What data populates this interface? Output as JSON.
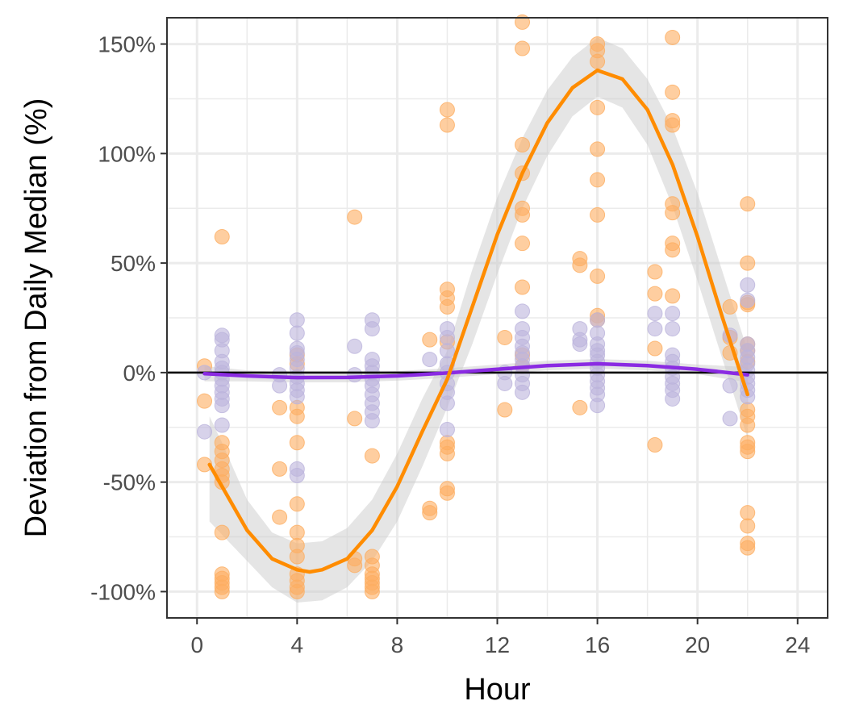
{
  "chart_data": {
    "type": "scatter",
    "title": "",
    "xlabel": "Hour",
    "ylabel": "Deviation from Daily Median (%)",
    "xlim": [
      -1.2,
      25.2
    ],
    "ylim": [
      -112,
      162
    ],
    "x_ticks": [
      0,
      4,
      8,
      12,
      16,
      20,
      24
    ],
    "x_tick_labels": [
      "0",
      "4",
      "8",
      "12",
      "16",
      "20",
      "24"
    ],
    "y_ticks": [
      -100,
      -50,
      0,
      50,
      100,
      150
    ],
    "y_tick_labels": [
      "-100%",
      "-50%",
      "0%",
      "50%",
      "100%",
      "150%"
    ],
    "grid": true,
    "reference_line_y": 0,
    "colors": {
      "orange_points": "#fdae61",
      "orange_line": "#ff8c00",
      "purple_points": "#bcb4dc",
      "purple_line": "#8a2be2",
      "ribbon": "#cccccc",
      "panel_border": "#333333",
      "grid": "#ebebeb"
    },
    "series": [
      {
        "color": "orange",
        "points": [
          [
            0.3,
            3
          ],
          [
            0.3,
            -13
          ],
          [
            0.3,
            -42
          ],
          [
            1.0,
            62
          ],
          [
            1.0,
            -32
          ],
          [
            1.0,
            -36
          ],
          [
            1.0,
            -40
          ],
          [
            1.0,
            -44
          ],
          [
            1.0,
            -47
          ],
          [
            1.0,
            -50
          ],
          [
            1.0,
            -73
          ],
          [
            1.0,
            -92
          ],
          [
            1.0,
            -94
          ],
          [
            1.0,
            -96
          ],
          [
            1.0,
            -98
          ],
          [
            1.0,
            -100
          ],
          [
            3.3,
            -16
          ],
          [
            3.3,
            -44
          ],
          [
            3.3,
            -66
          ],
          [
            4.0,
            8
          ],
          [
            4.0,
            4
          ],
          [
            4.0,
            -16
          ],
          [
            4.0,
            -20
          ],
          [
            4.0,
            -32
          ],
          [
            4.0,
            -60
          ],
          [
            4.0,
            -73
          ],
          [
            4.0,
            -79
          ],
          [
            4.0,
            -84
          ],
          [
            4.0,
            -92
          ],
          [
            4.0,
            -95
          ],
          [
            4.0,
            -98
          ],
          [
            4.0,
            -100
          ],
          [
            6.3,
            71
          ],
          [
            6.3,
            -21
          ],
          [
            6.3,
            -85
          ],
          [
            6.3,
            -88
          ],
          [
            7.0,
            -38
          ],
          [
            7.0,
            -84
          ],
          [
            7.0,
            -88
          ],
          [
            7.0,
            -92
          ],
          [
            7.0,
            -94
          ],
          [
            7.0,
            -96
          ],
          [
            7.0,
            -98
          ],
          [
            7.0,
            -100
          ],
          [
            9.3,
            15
          ],
          [
            9.3,
            -62
          ],
          [
            9.3,
            -64
          ],
          [
            10.0,
            120
          ],
          [
            10.0,
            113
          ],
          [
            10.0,
            38
          ],
          [
            10.0,
            34
          ],
          [
            10.0,
            30
          ],
          [
            10.0,
            14
          ],
          [
            10.0,
            -32
          ],
          [
            10.0,
            -34
          ],
          [
            10.0,
            -37
          ],
          [
            10.0,
            -53
          ],
          [
            10.0,
            -55
          ],
          [
            12.3,
            16
          ],
          [
            12.3,
            -17
          ],
          [
            13.0,
            160
          ],
          [
            13.0,
            148
          ],
          [
            13.0,
            104
          ],
          [
            13.0,
            91
          ],
          [
            13.0,
            75
          ],
          [
            13.0,
            72
          ],
          [
            13.0,
            59
          ],
          [
            13.0,
            39
          ],
          [
            13.0,
            8
          ],
          [
            13.0,
            3
          ],
          [
            15.3,
            52
          ],
          [
            15.3,
            49
          ],
          [
            15.3,
            -16
          ],
          [
            16.0,
            150
          ],
          [
            16.0,
            147
          ],
          [
            16.0,
            142
          ],
          [
            16.0,
            121
          ],
          [
            16.0,
            102
          ],
          [
            16.0,
            88
          ],
          [
            16.0,
            72
          ],
          [
            16.0,
            44
          ],
          [
            16.0,
            26
          ],
          [
            16.0,
            24
          ],
          [
            18.3,
            46
          ],
          [
            18.3,
            36
          ],
          [
            18.3,
            11
          ],
          [
            18.3,
            -33
          ],
          [
            19.0,
            153
          ],
          [
            19.0,
            128
          ],
          [
            19.0,
            115
          ],
          [
            19.0,
            113
          ],
          [
            19.0,
            77
          ],
          [
            19.0,
            73
          ],
          [
            19.0,
            59
          ],
          [
            19.0,
            56
          ],
          [
            19.0,
            35
          ],
          [
            21.3,
            30
          ],
          [
            21.3,
            16
          ],
          [
            21.3,
            9
          ],
          [
            22.0,
            77
          ],
          [
            22.0,
            50
          ],
          [
            22.0,
            32
          ],
          [
            22.0,
            31
          ],
          [
            22.0,
            13
          ],
          [
            22.0,
            10
          ],
          [
            22.0,
            5
          ],
          [
            22.0,
            -17
          ],
          [
            22.0,
            -20
          ],
          [
            22.0,
            -24
          ],
          [
            22.0,
            -32
          ],
          [
            22.0,
            -34
          ],
          [
            22.0,
            -36
          ],
          [
            22.0,
            -64
          ],
          [
            22.0,
            -70
          ],
          [
            22.0,
            -78
          ],
          [
            22.0,
            -80
          ]
        ],
        "smooth": [
          [
            0.5,
            -42
          ],
          [
            1.0,
            -52
          ],
          [
            2.0,
            -72
          ],
          [
            3.0,
            -85
          ],
          [
            4.0,
            -90
          ],
          [
            4.5,
            -91
          ],
          [
            5.0,
            -90
          ],
          [
            6.0,
            -85
          ],
          [
            7.0,
            -72
          ],
          [
            8.0,
            -52
          ],
          [
            9.0,
            -27
          ],
          [
            10.0,
            -3
          ],
          [
            11.0,
            30
          ],
          [
            12.0,
            63
          ],
          [
            13.0,
            91
          ],
          [
            14.0,
            114
          ],
          [
            15.0,
            130
          ],
          [
            16.0,
            138
          ],
          [
            17.0,
            134
          ],
          [
            18.0,
            120
          ],
          [
            19.0,
            95
          ],
          [
            20.0,
            62
          ],
          [
            21.0,
            25
          ],
          [
            22.0,
            -10
          ]
        ],
        "band": [
          [
            0.5,
            -68,
            -20
          ],
          [
            1.0,
            -74,
            -32
          ],
          [
            2.0,
            -86,
            -58
          ],
          [
            3.0,
            -98,
            -73
          ],
          [
            4.0,
            -105,
            -78
          ],
          [
            5.0,
            -104,
            -77
          ],
          [
            6.0,
            -98,
            -71
          ],
          [
            7.0,
            -86,
            -58
          ],
          [
            8.0,
            -68,
            -37
          ],
          [
            9.0,
            -43,
            -12
          ],
          [
            10.0,
            -16,
            10
          ],
          [
            11.0,
            13,
            47
          ],
          [
            12.0,
            45,
            80
          ],
          [
            13.0,
            75,
            107
          ],
          [
            14.0,
            99,
            129
          ],
          [
            15.0,
            117,
            144
          ],
          [
            16.0,
            126,
            153
          ],
          [
            17.0,
            121,
            148
          ],
          [
            18.0,
            104,
            134
          ],
          [
            19.0,
            76,
            112
          ],
          [
            20.0,
            42,
            82
          ],
          [
            21.0,
            6,
            46
          ],
          [
            22.0,
            -30,
            10
          ]
        ]
      },
      {
        "color": "purple",
        "points": [
          [
            0.3,
            -27
          ],
          [
            0.3,
            0
          ],
          [
            1.0,
            17
          ],
          [
            1.0,
            15
          ],
          [
            1.0,
            10
          ],
          [
            1.0,
            5
          ],
          [
            1.0,
            2
          ],
          [
            1.0,
            0
          ],
          [
            1.0,
            -3
          ],
          [
            1.0,
            -6
          ],
          [
            1.0,
            -9
          ],
          [
            1.0,
            -12
          ],
          [
            1.0,
            -15
          ],
          [
            1.0,
            -24
          ],
          [
            3.3,
            -1
          ],
          [
            3.3,
            -6
          ],
          [
            4.0,
            24
          ],
          [
            4.0,
            18
          ],
          [
            4.0,
            11
          ],
          [
            4.0,
            9
          ],
          [
            4.0,
            6
          ],
          [
            4.0,
            2
          ],
          [
            4.0,
            -2
          ],
          [
            4.0,
            -5
          ],
          [
            4.0,
            -8
          ],
          [
            4.0,
            -11
          ],
          [
            4.0,
            -44
          ],
          [
            4.0,
            -47
          ],
          [
            6.3,
            12
          ],
          [
            6.3,
            -1
          ],
          [
            7.0,
            24
          ],
          [
            7.0,
            20
          ],
          [
            7.0,
            6
          ],
          [
            7.0,
            3
          ],
          [
            7.0,
            0
          ],
          [
            7.0,
            -3
          ],
          [
            7.0,
            -6
          ],
          [
            7.0,
            -10
          ],
          [
            7.0,
            -14
          ],
          [
            7.0,
            -18
          ],
          [
            7.0,
            -22
          ],
          [
            9.3,
            6
          ],
          [
            10.0,
            20
          ],
          [
            10.0,
            16
          ],
          [
            10.0,
            10
          ],
          [
            10.0,
            4
          ],
          [
            10.0,
            0
          ],
          [
            10.0,
            -5
          ],
          [
            10.0,
            -9
          ],
          [
            10.0,
            -14
          ],
          [
            10.0,
            -26
          ],
          [
            12.3,
            0
          ],
          [
            12.3,
            -5
          ],
          [
            13.0,
            28
          ],
          [
            13.0,
            20
          ],
          [
            13.0,
            16
          ],
          [
            13.0,
            12
          ],
          [
            13.0,
            9
          ],
          [
            13.0,
            6
          ],
          [
            13.0,
            3
          ],
          [
            13.0,
            -1
          ],
          [
            13.0,
            -5
          ],
          [
            13.0,
            -9
          ],
          [
            15.3,
            20
          ],
          [
            15.3,
            15
          ],
          [
            15.3,
            13
          ],
          [
            16.0,
            24
          ],
          [
            16.0,
            18
          ],
          [
            16.0,
            13
          ],
          [
            16.0,
            10
          ],
          [
            16.0,
            8
          ],
          [
            16.0,
            5
          ],
          [
            16.0,
            2
          ],
          [
            16.0,
            -1
          ],
          [
            16.0,
            -4
          ],
          [
            16.0,
            -7
          ],
          [
            16.0,
            -10
          ],
          [
            16.0,
            -15
          ],
          [
            18.3,
            27
          ],
          [
            18.3,
            20
          ],
          [
            19.0,
            27
          ],
          [
            19.0,
            20
          ],
          [
            19.0,
            8
          ],
          [
            19.0,
            5
          ],
          [
            19.0,
            2
          ],
          [
            19.0,
            -2
          ],
          [
            19.0,
            -5
          ],
          [
            19.0,
            -8
          ],
          [
            19.0,
            -12
          ],
          [
            21.3,
            17
          ],
          [
            21.3,
            -6
          ],
          [
            21.3,
            -21
          ],
          [
            22.0,
            40
          ],
          [
            22.0,
            33
          ],
          [
            22.0,
            13
          ],
          [
            22.0,
            10
          ],
          [
            22.0,
            7
          ],
          [
            22.0,
            4
          ],
          [
            22.0,
            1
          ],
          [
            22.0,
            -2
          ],
          [
            22.0,
            -5
          ],
          [
            22.0,
            -8
          ],
          [
            22.0,
            -11
          ]
        ],
        "smooth": [
          [
            0.3,
            -0.5
          ],
          [
            2.0,
            -1.5
          ],
          [
            4.0,
            -2.3
          ],
          [
            6.0,
            -2.2
          ],
          [
            8.0,
            -1.5
          ],
          [
            10.0,
            -0.2
          ],
          [
            12.0,
            1.5
          ],
          [
            14.0,
            3.2
          ],
          [
            16.0,
            4.0
          ],
          [
            18.0,
            3.2
          ],
          [
            20.0,
            1.5
          ],
          [
            22.0,
            -1
          ]
        ],
        "band": [
          [
            0.3,
            -4,
            3
          ],
          [
            2.0,
            -4,
            1
          ],
          [
            4.0,
            -4.5,
            -0.1
          ],
          [
            6.0,
            -4.4,
            0
          ],
          [
            8.0,
            -3.7,
            0.7
          ],
          [
            10.0,
            -2.4,
            2
          ],
          [
            12.0,
            -0.7,
            3.7
          ],
          [
            14.0,
            1,
            5.4
          ],
          [
            16.0,
            1.8,
            6.2
          ],
          [
            18.0,
            1,
            5.4
          ],
          [
            20.0,
            -0.7,
            3.7
          ],
          [
            22.0,
            -4.5,
            2.5
          ]
        ]
      }
    ]
  }
}
